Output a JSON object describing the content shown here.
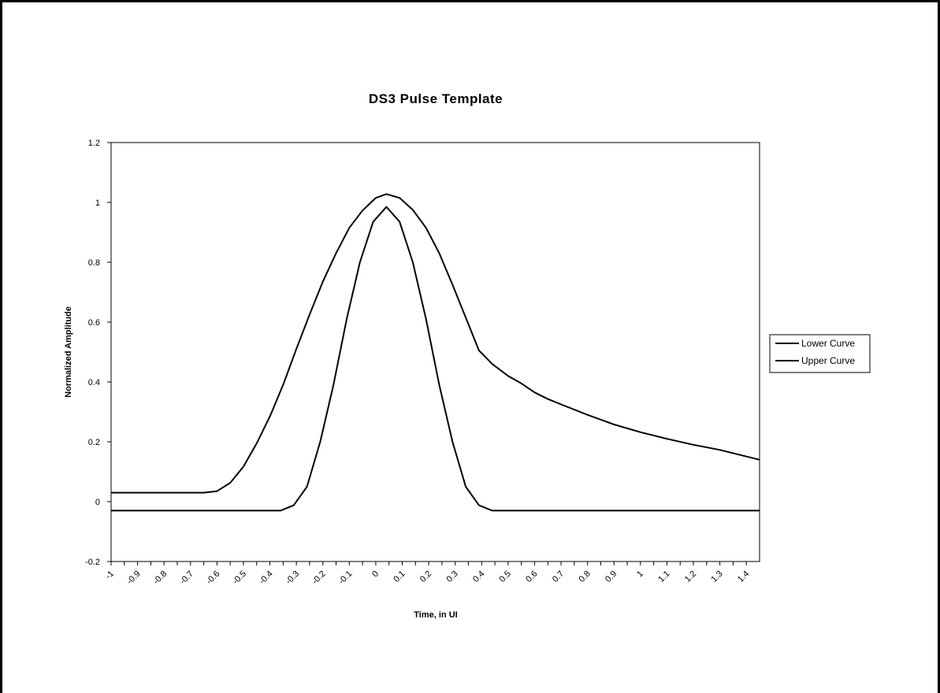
{
  "chart_data": {
    "type": "line",
    "title": "DS3 Pulse Template",
    "xlabel": "Time, in UI",
    "ylabel": "Normalized Amplitude",
    "ylim": [
      -0.2,
      1.2
    ],
    "xlim": [
      -1,
      1.45
    ],
    "y_ticks": [
      "-0.2",
      "0",
      "0.2",
      "0.4",
      "0.6",
      "0.8",
      "1",
      "1.2"
    ],
    "x_ticks": [
      "-1",
      "-0.9",
      "-0.8",
      "-0.7",
      "-0.6",
      "-0.5",
      "-0.4",
      "-0.3",
      "-0.2",
      "-0.1",
      "0",
      "0.1",
      "0.2",
      "0.3",
      "0.4",
      "0.5",
      "0.6",
      "0.7",
      "0.8",
      "0.9",
      "1",
      "1.1",
      "1.2",
      "1.3",
      "1.4"
    ],
    "legend_position": "right",
    "grid": false,
    "series": [
      {
        "name": "Lower Curve",
        "color": "#000000",
        "x": [
          -1,
          -0.85,
          -0.7,
          -0.55,
          -0.4,
          -0.36,
          -0.31,
          -0.26,
          -0.21,
          -0.16,
          -0.11,
          -0.06,
          -0.01,
          0.04,
          0.09,
          0.14,
          0.19,
          0.24,
          0.29,
          0.34,
          0.39,
          0.44,
          0.6,
          0.8,
          1.0,
          1.2,
          1.45
        ],
        "y": [
          -0.03,
          -0.03,
          -0.03,
          -0.03,
          -0.03,
          -0.03,
          -0.012,
          0.05,
          0.2,
          0.39,
          0.61,
          0.8,
          0.935,
          0.985,
          0.935,
          0.8,
          0.61,
          0.39,
          0.2,
          0.05,
          -0.012,
          -0.03,
          -0.03,
          -0.03,
          -0.03,
          -0.03,
          -0.03
        ]
      },
      {
        "name": "Upper Curve",
        "color": "#000000",
        "x": [
          -1,
          -0.85,
          -0.7,
          -0.65,
          -0.6,
          -0.55,
          -0.5,
          -0.45,
          -0.4,
          -0.35,
          -0.3,
          -0.25,
          -0.2,
          -0.15,
          -0.1,
          -0.05,
          0,
          0.04,
          0.09,
          0.14,
          0.19,
          0.24,
          0.29,
          0.34,
          0.39,
          0.44,
          0.5,
          0.55,
          0.6,
          0.65,
          0.7,
          0.8,
          0.9,
          1.0,
          1.1,
          1.2,
          1.3,
          1.45
        ],
        "y": [
          0.03,
          0.03,
          0.03,
          0.03,
          0.035,
          0.063,
          0.117,
          0.195,
          0.285,
          0.39,
          0.51,
          0.625,
          0.735,
          0.83,
          0.915,
          0.973,
          1.015,
          1.028,
          1.015,
          0.975,
          0.915,
          0.83,
          0.725,
          0.615,
          0.505,
          0.46,
          0.42,
          0.395,
          0.365,
          0.343,
          0.325,
          0.29,
          0.258,
          0.232,
          0.21,
          0.19,
          0.173,
          0.14
        ]
      }
    ]
  }
}
